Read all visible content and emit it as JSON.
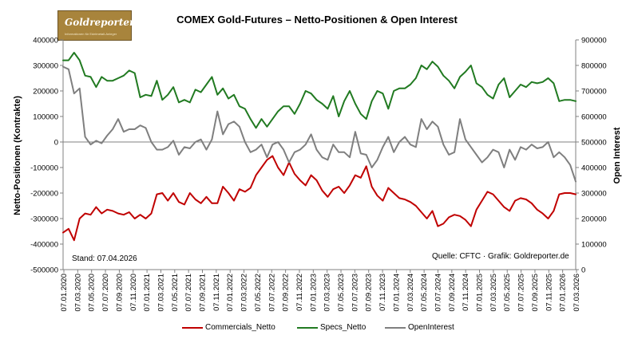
{
  "chart_data": {
    "type": "line",
    "title": "COMEX Gold-Futures – Netto-Positionen & Open Interest",
    "ylabel_left": "Netto-Positionen (Kontrakte)",
    "ylabel_right": "Open Interest",
    "ylim_left": [
      -500000,
      400000
    ],
    "ylim_right": [
      0,
      900000
    ],
    "yticks_left": [
      "400000",
      "300000",
      "200000",
      "100000",
      "0",
      "-100000",
      "-200000",
      "-300000",
      "-400000",
      "-500000"
    ],
    "yticks_right": [
      "900000",
      "800000",
      "700000",
      "600000",
      "500000",
      "400000",
      "300000",
      "200000",
      "100000",
      "0"
    ],
    "xticks": [
      "07.01.2020",
      "07.03.2020",
      "07.05.2020",
      "07.07.2020",
      "07.09.2020",
      "07.11.2020",
      "07.01.2021",
      "07.03.2021",
      "07.05.2021",
      "07.07.2021",
      "07.09.2021",
      "07.11.2021",
      "07.01.2022",
      "07.03.2022",
      "07.05.2022",
      "07.07.2022",
      "07.09.2022",
      "07.11.2022",
      "07.01.2023",
      "07.03.2023",
      "07.05.2023",
      "07.07.2023",
      "07.09.2023",
      "07.11.2023",
      "07.01.2024",
      "07.03.2024",
      "07.05.2024",
      "07.07.2024",
      "07.09.2024",
      "07.11.2024",
      "07.01.2025",
      "07.03.2025",
      "07.05.2025",
      "07.07.2025",
      "07.09.2025",
      "07.11.2025",
      "07.01.2026",
      "07.03.2026"
    ],
    "grid": false,
    "legend_position": "bottom",
    "series": [
      {
        "name": "Commercials_Netto",
        "axis": "left",
        "color": "#c00000",
        "values": [
          -355000,
          -340000,
          -385000,
          -300000,
          -280000,
          -285000,
          -255000,
          -280000,
          -265000,
          -270000,
          -280000,
          -285000,
          -275000,
          -300000,
          -285000,
          -300000,
          -280000,
          -205000,
          -200000,
          -230000,
          -200000,
          -235000,
          -245000,
          -200000,
          -225000,
          -240000,
          -215000,
          -240000,
          -240000,
          -175000,
          -200000,
          -230000,
          -185000,
          -195000,
          -180000,
          -130000,
          -100000,
          -70000,
          -55000,
          -100000,
          -130000,
          -80000,
          -125000,
          -150000,
          -170000,
          -130000,
          -150000,
          -190000,
          -215000,
          -185000,
          -175000,
          -200000,
          -170000,
          -130000,
          -140000,
          -95000,
          -175000,
          -210000,
          -230000,
          -180000,
          -200000,
          -220000,
          -225000,
          -235000,
          -250000,
          -275000,
          -300000,
          -270000,
          -330000,
          -320000,
          -295000,
          -285000,
          -290000,
          -305000,
          -330000,
          -265000,
          -230000,
          -195000,
          -205000,
          -230000,
          -255000,
          -270000,
          -230000,
          -220000,
          -225000,
          -240000,
          -265000,
          -280000,
          -300000,
          -270000,
          -205000,
          -200000,
          -200000,
          -205000
        ]
      },
      {
        "name": "Specs_Netto",
        "axis": "left",
        "color": "#217a21",
        "values": [
          320000,
          320000,
          350000,
          320000,
          260000,
          255000,
          215000,
          255000,
          240000,
          240000,
          250000,
          260000,
          280000,
          270000,
          175000,
          185000,
          180000,
          240000,
          165000,
          185000,
          215000,
          155000,
          165000,
          155000,
          205000,
          195000,
          225000,
          255000,
          185000,
          210000,
          170000,
          185000,
          140000,
          130000,
          90000,
          55000,
          90000,
          60000,
          90000,
          120000,
          140000,
          140000,
          110000,
          150000,
          200000,
          190000,
          165000,
          150000,
          130000,
          180000,
          100000,
          160000,
          200000,
          150000,
          110000,
          90000,
          160000,
          200000,
          190000,
          130000,
          200000,
          210000,
          210000,
          225000,
          250000,
          300000,
          285000,
          315000,
          295000,
          260000,
          240000,
          210000,
          255000,
          275000,
          300000,
          230000,
          215000,
          185000,
          170000,
          225000,
          250000,
          175000,
          200000,
          225000,
          215000,
          235000,
          230000,
          235000,
          250000,
          230000,
          160000,
          165000,
          165000,
          160000
        ]
      },
      {
        "name": "OpenInterest",
        "axis": "right",
        "color": "#7f7f7f",
        "values": [
          795000,
          785000,
          690000,
          710000,
          520000,
          490000,
          505000,
          495000,
          525000,
          550000,
          590000,
          540000,
          550000,
          550000,
          565000,
          555000,
          500000,
          470000,
          470000,
          480000,
          505000,
          450000,
          480000,
          475000,
          500000,
          510000,
          470000,
          510000,
          620000,
          530000,
          570000,
          580000,
          560000,
          500000,
          460000,
          470000,
          490000,
          440000,
          490000,
          500000,
          470000,
          420000,
          460000,
          470000,
          490000,
          530000,
          470000,
          440000,
          430000,
          490000,
          460000,
          460000,
          440000,
          540000,
          455000,
          450000,
          400000,
          430000,
          480000,
          520000,
          460000,
          500000,
          520000,
          490000,
          480000,
          590000,
          550000,
          580000,
          560000,
          490000,
          450000,
          460000,
          590000,
          510000,
          480000,
          450000,
          420000,
          440000,
          470000,
          460000,
          400000,
          470000,
          430000,
          480000,
          470000,
          490000,
          475000,
          480000,
          500000,
          440000,
          460000,
          440000,
          410000,
          345000
        ]
      }
    ]
  },
  "logo": {
    "name": "Goldreporter",
    "tagline": "Informationen für Edelmetall-Anleger"
  },
  "annotations": {
    "stand": "Stand: 07.04.2026",
    "source": "Quelle: CFTC · Grafik: Goldreporter.de"
  }
}
